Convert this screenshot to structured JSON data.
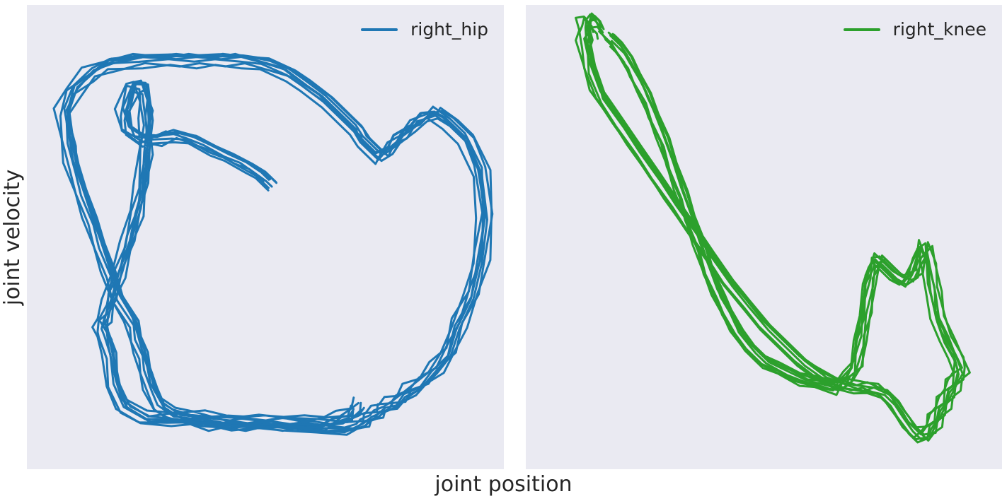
{
  "chart_data": {
    "type": "line",
    "xlabel": "joint position",
    "ylabel": "joint velocity",
    "grid": false,
    "ticks": "none",
    "legend_placement": "top-right",
    "panels": [
      {
        "series": [
          {
            "name": "right_hip",
            "color": "#1f77b4",
            "cycles": 8,
            "xlim": [
              0,
              1
            ],
            "ylim": [
              0,
              1
            ],
            "x": [
              0.51,
              0.49,
              0.46,
              0.42,
              0.38,
              0.34,
              0.3,
              0.26,
              0.23,
              0.2,
              0.19,
              0.21,
              0.23,
              0.24,
              0.24,
              0.24,
              0.23,
              0.22,
              0.2,
              0.18,
              0.16,
              0.15,
              0.14,
              0.15,
              0.16,
              0.17,
              0.19,
              0.24,
              0.3,
              0.37,
              0.43,
              0.49,
              0.54,
              0.62,
              0.68,
              0.71,
              0.72,
              0.74,
              0.75,
              0.77,
              0.79,
              0.81,
              0.84,
              0.87,
              0.9,
              0.92,
              0.95,
              0.97,
              0.98,
              0.97,
              0.94,
              0.9,
              0.87,
              0.85,
              0.82,
              0.79,
              0.77,
              0.75,
              0.73,
              0.71,
              0.7,
              0.68,
              0.66,
              0.63,
              0.59,
              0.55,
              0.5,
              0.45,
              0.4,
              0.35,
              0.3,
              0.23,
              0.16,
              0.12,
              0.08,
              0.06,
              0.07,
              0.08,
              0.1,
              0.12,
              0.14,
              0.16,
              0.18,
              0.21,
              0.22,
              0.23,
              0.24,
              0.25,
              0.27,
              0.3,
              0.34,
              0.38,
              0.42,
              0.46,
              0.5,
              0.54,
              0.59,
              0.63,
              0.66,
              0.69,
              0.7
            ],
            "y": [
              0.62,
              0.64,
              0.66,
              0.68,
              0.7,
              0.72,
              0.73,
              0.72,
              0.72,
              0.74,
              0.78,
              0.84,
              0.84,
              0.8,
              0.76,
              0.7,
              0.62,
              0.56,
              0.49,
              0.42,
              0.36,
              0.32,
              0.3,
              0.28,
              0.24,
              0.17,
              0.12,
              0.09,
              0.09,
              0.09,
              0.08,
              0.08,
              0.08,
              0.07,
              0.07,
              0.08,
              0.09,
              0.1,
              0.11,
              0.12,
              0.13,
              0.15,
              0.17,
              0.2,
              0.24,
              0.3,
              0.37,
              0.45,
              0.55,
              0.65,
              0.72,
              0.76,
              0.78,
              0.77,
              0.75,
              0.72,
              0.7,
              0.68,
              0.7,
              0.72,
              0.74,
              0.76,
              0.78,
              0.81,
              0.84,
              0.87,
              0.89,
              0.9,
              0.9,
              0.9,
              0.9,
              0.9,
              0.89,
              0.87,
              0.83,
              0.78,
              0.72,
              0.66,
              0.6,
              0.54,
              0.48,
              0.42,
              0.36,
              0.31,
              0.27,
              0.24,
              0.2,
              0.16,
              0.12,
              0.1,
              0.09,
              0.08,
              0.08,
              0.08,
              0.08,
              0.08,
              0.08,
              0.08,
              0.09,
              0.1,
              0.12
            ]
          }
        ]
      },
      {
        "series": [
          {
            "name": "right_knee",
            "color": "#2ca02c",
            "cycles": 8,
            "xlim": [
              0,
              1
            ],
            "ylim": [
              0,
              1
            ],
            "x": [
              0.16,
              0.18,
              0.2,
              0.22,
              0.24,
              0.26,
              0.28,
              0.3,
              0.32,
              0.34,
              0.36,
              0.38,
              0.4,
              0.42,
              0.44,
              0.47,
              0.5,
              0.54,
              0.58,
              0.62,
              0.66,
              0.68,
              0.7,
              0.71,
              0.72,
              0.73,
              0.74,
              0.75,
              0.77,
              0.79,
              0.81,
              0.83,
              0.84,
              0.85,
              0.86,
              0.87,
              0.88,
              0.9,
              0.92,
              0.93,
              0.92,
              0.91,
              0.9,
              0.89,
              0.88,
              0.87,
              0.86,
              0.84,
              0.82,
              0.8,
              0.78,
              0.76,
              0.73,
              0.7,
              0.66,
              0.62,
              0.58,
              0.54,
              0.5,
              0.46,
              0.42,
              0.38,
              0.34,
              0.3,
              0.26,
              0.22,
              0.18,
              0.14,
              0.12,
              0.11,
              0.11,
              0.11,
              0.12,
              0.13,
              0.14
            ],
            "y": [
              0.95,
              0.93,
              0.9,
              0.86,
              0.82,
              0.77,
              0.72,
              0.66,
              0.6,
              0.54,
              0.48,
              0.42,
              0.37,
              0.33,
              0.29,
              0.25,
              0.22,
              0.2,
              0.18,
              0.17,
              0.16,
              0.18,
              0.21,
              0.27,
              0.33,
              0.4,
              0.44,
              0.45,
              0.43,
              0.41,
              0.4,
              0.42,
              0.46,
              0.48,
              0.44,
              0.38,
              0.32,
              0.27,
              0.23,
              0.2,
              0.18,
              0.16,
              0.14,
              0.12,
              0.1,
              0.08,
              0.06,
              0.05,
              0.07,
              0.1,
              0.13,
              0.15,
              0.16,
              0.16,
              0.17,
              0.19,
              0.22,
              0.26,
              0.3,
              0.35,
              0.4,
              0.46,
              0.52,
              0.58,
              0.64,
              0.7,
              0.76,
              0.82,
              0.88,
              0.93,
              0.96,
              0.98,
              0.99,
              0.98,
              0.96
            ]
          }
        ]
      }
    ]
  }
}
